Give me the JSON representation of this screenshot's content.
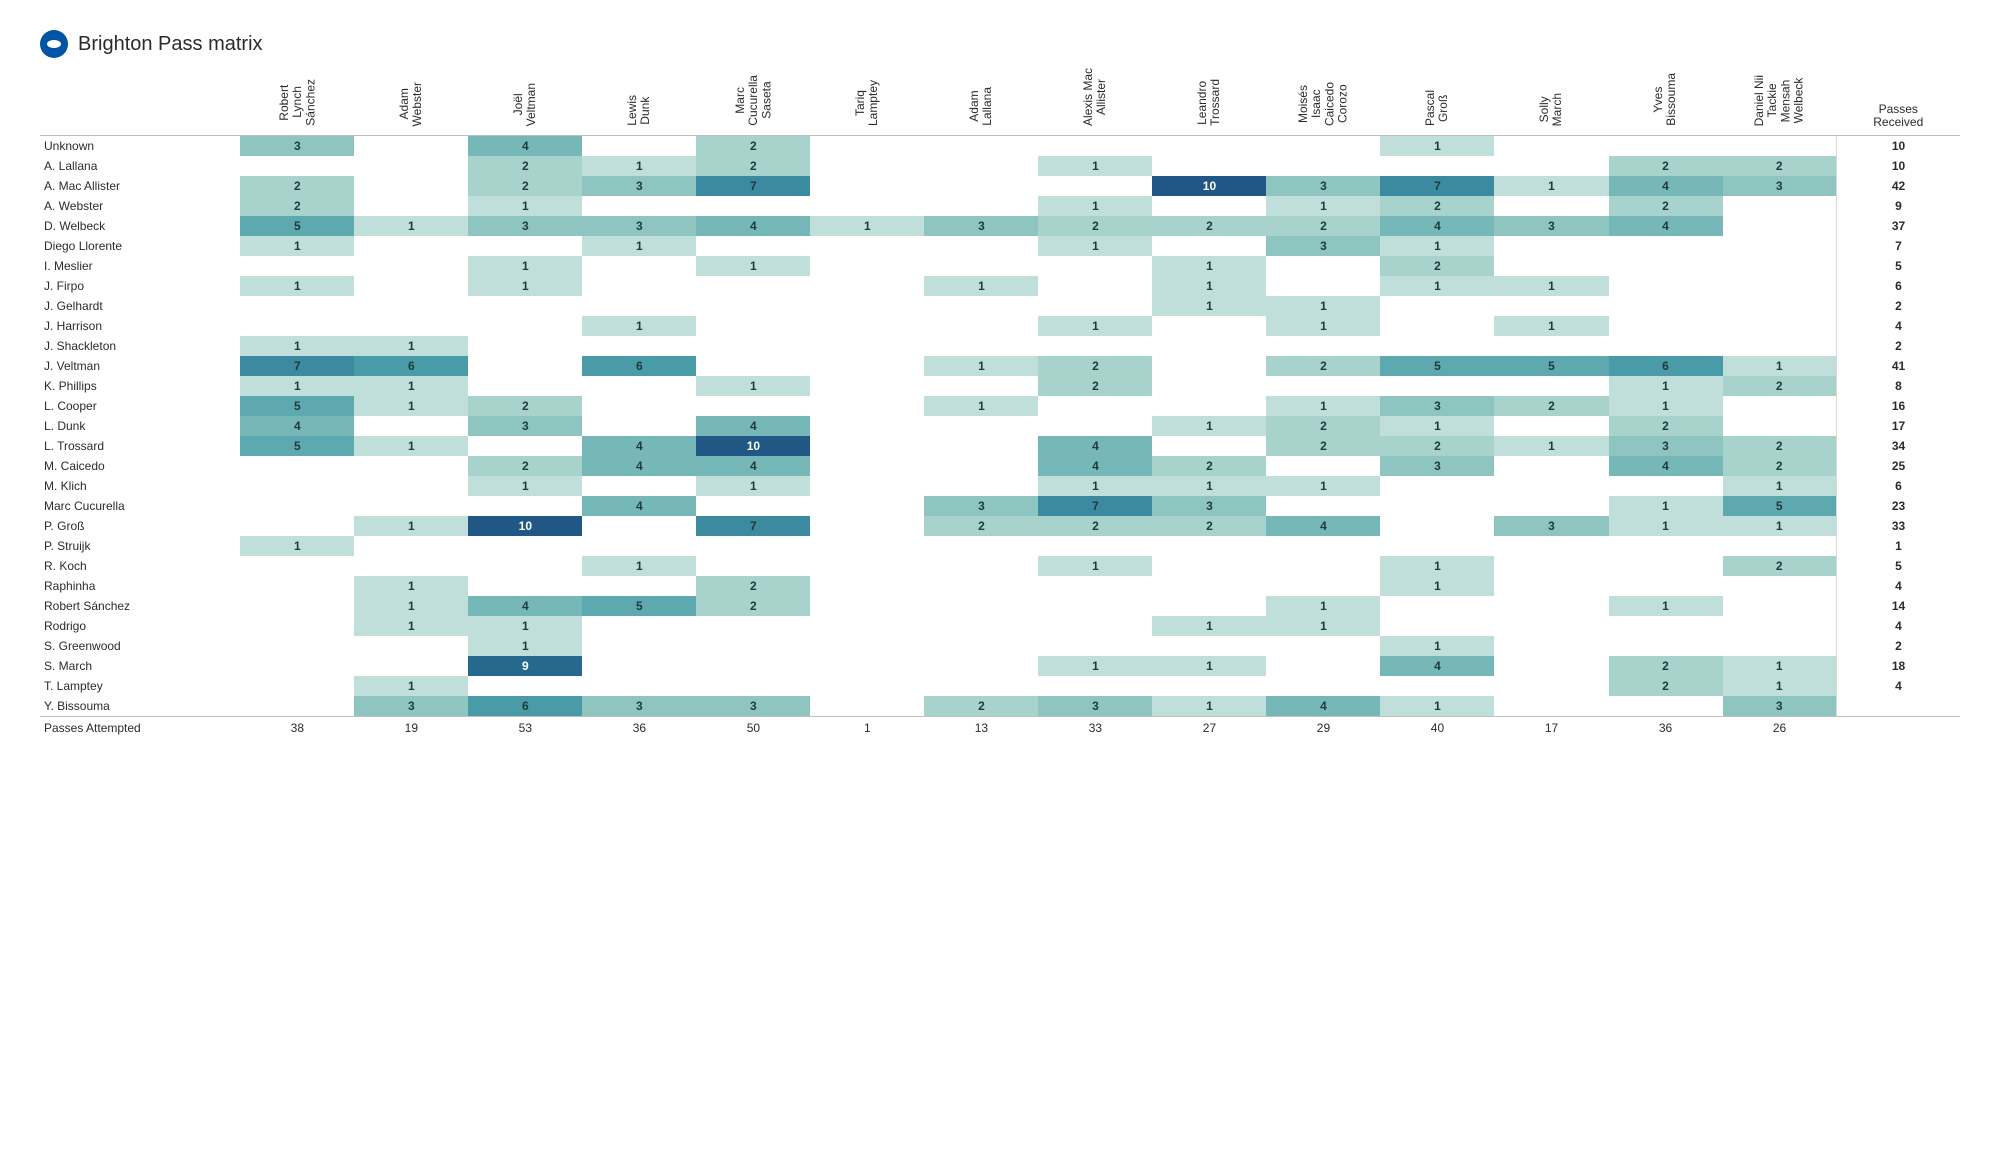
{
  "title": "Brighton Pass matrix",
  "totals_col_header": "Passes\nReceived",
  "totals_row_header": "Passes Attempted",
  "columns": [
    "Robert\nLynch\nSánchez",
    "Adam\nWebster",
    "Joël\nVeltman",
    "Lewis\nDunk",
    "Marc\nCucurella\nSaseta",
    "Tariq\nLamptey",
    "Adam\nLallana",
    "Alexis Mac\nAllister",
    "Leandro\nTrossard",
    "Moisés\nIsaac\nCaicedo\nCorozo",
    "Pascal\nGroß",
    "Solly\nMarch",
    "Yves\nBissouma",
    "Daniel Nii\nTackie\nMensah\nWelbeck"
  ],
  "color_scale": {
    "empty": "#ffffff",
    "stops": [
      {
        "v": 1,
        "c": "#c0dfda"
      },
      {
        "v": 2,
        "c": "#a8d2cc"
      },
      {
        "v": 3,
        "c": "#8fc5c1"
      },
      {
        "v": 4,
        "c": "#76b7b8"
      },
      {
        "v": 5,
        "c": "#5da9af"
      },
      {
        "v": 6,
        "c": "#4a9ba8"
      },
      {
        "v": 7,
        "c": "#3b8aa0"
      },
      {
        "v": 8,
        "c": "#307a97"
      },
      {
        "v": 9,
        "c": "#27698e"
      },
      {
        "v": 10,
        "c": "#205785"
      }
    ],
    "text_light_threshold": 9,
    "text_dark": "#1e3a3a",
    "text_light": "#ffffff"
  },
  "rows": [
    {
      "label": "Unknown",
      "cells": [
        3,
        null,
        4,
        null,
        2,
        null,
        null,
        null,
        null,
        null,
        1,
        null,
        null,
        null
      ],
      "total": 10
    },
    {
      "label": "A. Lallana",
      "cells": [
        null,
        null,
        2,
        1,
        2,
        null,
        null,
        1,
        null,
        null,
        null,
        null,
        2,
        2
      ],
      "total": 10
    },
    {
      "label": "A. Mac Allister",
      "cells": [
        2,
        null,
        2,
        3,
        7,
        null,
        null,
        null,
        10,
        3,
        7,
        1,
        4,
        3
      ],
      "total": 42
    },
    {
      "label": "A. Webster",
      "cells": [
        2,
        null,
        1,
        null,
        null,
        null,
        null,
        1,
        null,
        1,
        2,
        null,
        2,
        null
      ],
      "total": 9
    },
    {
      "label": "D. Welbeck",
      "cells": [
        5,
        1,
        3,
        3,
        4,
        1,
        3,
        2,
        2,
        2,
        4,
        3,
        4,
        null
      ],
      "total": 37
    },
    {
      "label": "Diego Llorente",
      "cells": [
        1,
        null,
        null,
        1,
        null,
        null,
        null,
        1,
        null,
        3,
        1,
        null,
        null,
        null
      ],
      "total": 7
    },
    {
      "label": "I. Meslier",
      "cells": [
        null,
        null,
        1,
        null,
        1,
        null,
        null,
        null,
        1,
        null,
        2,
        null,
        null,
        null
      ],
      "total": 5
    },
    {
      "label": "J. Firpo",
      "cells": [
        1,
        null,
        1,
        null,
        null,
        null,
        1,
        null,
        1,
        null,
        1,
        1,
        null,
        null
      ],
      "total": 6
    },
    {
      "label": "J. Gelhardt",
      "cells": [
        null,
        null,
        null,
        null,
        null,
        null,
        null,
        null,
        1,
        1,
        null,
        null,
        null,
        null
      ],
      "total": 2
    },
    {
      "label": "J. Harrison",
      "cells": [
        null,
        null,
        null,
        1,
        null,
        null,
        null,
        1,
        null,
        1,
        null,
        1,
        null,
        null
      ],
      "total": 4
    },
    {
      "label": "J. Shackleton",
      "cells": [
        1,
        1,
        null,
        null,
        null,
        null,
        null,
        null,
        null,
        null,
        null,
        null,
        null,
        null
      ],
      "total": 2
    },
    {
      "label": "J. Veltman",
      "cells": [
        7,
        6,
        null,
        6,
        null,
        null,
        1,
        2,
        null,
        2,
        5,
        5,
        6,
        1
      ],
      "total": 41
    },
    {
      "label": "K. Phillips",
      "cells": [
        1,
        1,
        null,
        null,
        1,
        null,
        null,
        2,
        null,
        null,
        null,
        null,
        1,
        2
      ],
      "total": 8
    },
    {
      "label": "L. Cooper",
      "cells": [
        5,
        1,
        2,
        null,
        null,
        null,
        1,
        null,
        null,
        1,
        3,
        2,
        1,
        null
      ],
      "total": 16
    },
    {
      "label": "L. Dunk",
      "cells": [
        4,
        null,
        3,
        null,
        4,
        null,
        null,
        null,
        1,
        2,
        1,
        null,
        2,
        null
      ],
      "total": 17
    },
    {
      "label": "L. Trossard",
      "cells": [
        5,
        1,
        null,
        4,
        10,
        null,
        null,
        4,
        null,
        2,
        2,
        1,
        3,
        2
      ],
      "total": 34
    },
    {
      "label": "M. Caicedo",
      "cells": [
        null,
        null,
        2,
        4,
        4,
        null,
        null,
        4,
        2,
        null,
        3,
        null,
        4,
        2
      ],
      "total": 25
    },
    {
      "label": "M. Klich",
      "cells": [
        null,
        null,
        1,
        null,
        1,
        null,
        null,
        1,
        1,
        1,
        null,
        null,
        null,
        1
      ],
      "total": 6
    },
    {
      "label": "Marc Cucurella",
      "cells": [
        null,
        null,
        null,
        4,
        null,
        null,
        3,
        7,
        3,
        null,
        null,
        null,
        1,
        5
      ],
      "total": 23
    },
    {
      "label": "P. Groß",
      "cells": [
        null,
        1,
        10,
        null,
        7,
        null,
        2,
        2,
        2,
        4,
        null,
        3,
        1,
        1
      ],
      "total": 33
    },
    {
      "label": "P. Struijk",
      "cells": [
        1,
        null,
        null,
        null,
        null,
        null,
        null,
        null,
        null,
        null,
        null,
        null,
        null,
        null
      ],
      "total": 1
    },
    {
      "label": "R. Koch",
      "cells": [
        null,
        null,
        null,
        1,
        null,
        null,
        null,
        1,
        null,
        null,
        1,
        null,
        null,
        2
      ],
      "total": 5
    },
    {
      "label": "Raphinha",
      "cells": [
        null,
        1,
        null,
        null,
        2,
        null,
        null,
        null,
        null,
        null,
        1,
        null,
        null,
        null
      ],
      "total": 4
    },
    {
      "label": "Robert Sánchez",
      "cells": [
        null,
        1,
        4,
        5,
        2,
        null,
        null,
        null,
        null,
        1,
        null,
        null,
        1,
        null
      ],
      "total": 14
    },
    {
      "label": "Rodrigo",
      "cells": [
        null,
        1,
        1,
        null,
        null,
        null,
        null,
        null,
        1,
        1,
        null,
        null,
        null,
        null
      ],
      "total": 4
    },
    {
      "label": "S. Greenwood",
      "cells": [
        null,
        null,
        1,
        null,
        null,
        null,
        null,
        null,
        null,
        null,
        1,
        null,
        null,
        null
      ],
      "total": 2
    },
    {
      "label": "S. March",
      "cells": [
        null,
        null,
        9,
        null,
        null,
        null,
        null,
        1,
        1,
        null,
        4,
        null,
        2,
        1
      ],
      "total": 18
    },
    {
      "label": "T. Lamptey",
      "cells": [
        null,
        1,
        null,
        null,
        null,
        null,
        null,
        null,
        null,
        null,
        null,
        null,
        2,
        1
      ],
      "total": 4
    },
    {
      "label": "Y. Bissouma",
      "cells": [
        null,
        3,
        6,
        3,
        3,
        null,
        2,
        3,
        1,
        4,
        1,
        null,
        null,
        3
      ],
      "total": null
    }
  ],
  "col_totals": [
    38,
    19,
    53,
    36,
    50,
    1,
    13,
    33,
    27,
    29,
    40,
    17,
    36,
    26
  ]
}
